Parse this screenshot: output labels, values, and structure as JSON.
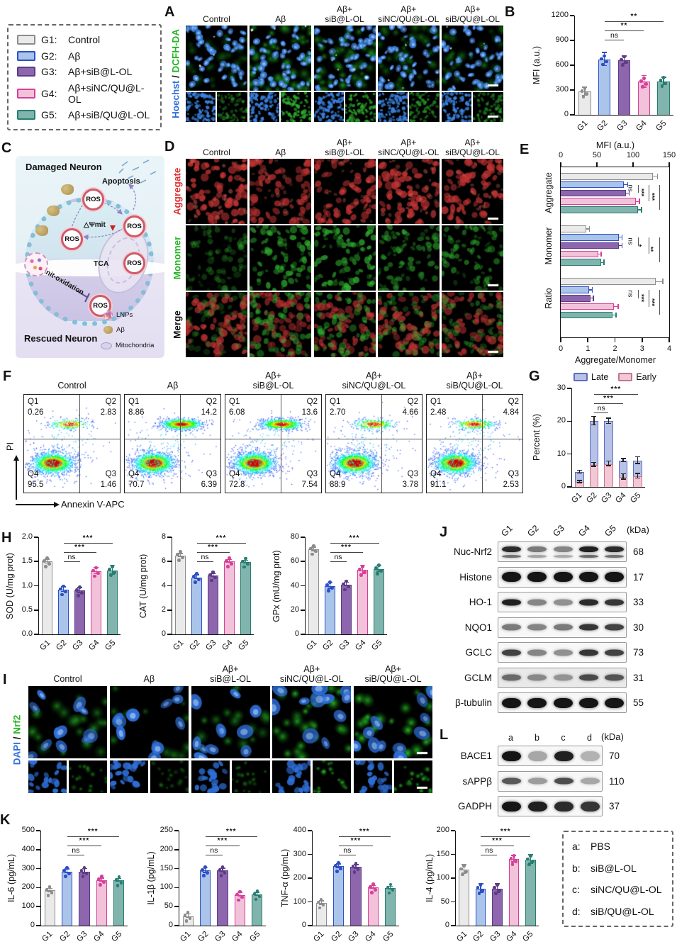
{
  "style": {
    "group_colors": [
      {
        "fill": "#eaeaea",
        "stroke": "#8c8c8c"
      },
      {
        "fill": "#abc4ea",
        "stroke": "#2d4fc4"
      },
      {
        "fill": "#8d66ad",
        "stroke": "#5b3c86"
      },
      {
        "fill": "#f2c2da",
        "stroke": "#d63f97"
      },
      {
        "fill": "#80b4ac",
        "stroke": "#277d72"
      }
    ],
    "late_color": {
      "fill": "#b8c2e6",
      "stroke": "#5a6dc2"
    },
    "early_color": {
      "fill": "#f3c8d4",
      "stroke": "#c4758e"
    },
    "hoechst_blue": "#2f6fd8",
    "dcfh_green": "#28b428",
    "aggregate_red": "#e03030",
    "monomer_green": "#28b428",
    "merge_dark": "#111111",
    "dapi_blue": "#2f6fd8",
    "nrf2_green": "#28b428"
  },
  "legend_groups": {
    "sep": ":",
    "items": [
      {
        "key": "G1",
        "label": "Control"
      },
      {
        "key": "G2",
        "label": "Aβ"
      },
      {
        "key": "G3",
        "label": "Aβ+siB@L-OL"
      },
      {
        "key": "G4",
        "label": "Aβ+siNC/QU@L-OL"
      },
      {
        "key": "G5",
        "label": "Aβ+siB/QU@L-OL"
      }
    ]
  },
  "legend_treatments": {
    "sep": ":",
    "items": [
      {
        "key": "a",
        "label": "PBS"
      },
      {
        "key": "b",
        "label": "siB@L-OL"
      },
      {
        "key": "c",
        "label": "siNC/QU@L-OL"
      },
      {
        "key": "d",
        "label": "siB/QU@L-OL"
      }
    ]
  },
  "treatment_columns": [
    [
      "Control"
    ],
    [
      "Aβ"
    ],
    [
      "Aβ+",
      "siB@L-OL"
    ],
    [
      "Aβ+",
      "siNC/QU@L-OL"
    ],
    [
      "Aβ+",
      "siB/QU@L-OL"
    ]
  ],
  "panels": {
    "A": {
      "letter": "A",
      "ylabel_parts": [
        "Hoechst",
        " / ",
        "DCFH-DA"
      ]
    },
    "B": {
      "letter": "B"
    },
    "C": {
      "letter": "C",
      "damaged": "Damaged Neuron",
      "rescued": "Rescued Neuron",
      "apoptosis": "Apoptosis",
      "ros": "ROS",
      "psi": "△Ψmit",
      "tca": "TCA",
      "antiox": "anit-oxidation",
      "legend": [
        {
          "icon": "lnp-icon",
          "label": "LNPs"
        },
        {
          "icon": "abeta-icon",
          "label": "Aβ"
        },
        {
          "icon": "mitochondria-icon",
          "label": "Mitochondria"
        }
      ]
    },
    "D": {
      "letter": "D",
      "rows": [
        {
          "label": "Aggregate",
          "color": "#e03030"
        },
        {
          "label": "Monomer",
          "color": "#28b428"
        },
        {
          "label": "Merge",
          "color": "#111111"
        }
      ]
    },
    "E": {
      "letter": "E"
    },
    "F": {
      "letter": "F",
      "ylabel": "PI",
      "xlabel": "Annexin V-APC",
      "quadrant_labels": [
        "Q1",
        "Q2",
        "Q3",
        "Q4"
      ],
      "plots": [
        {
          "q1": "0.26",
          "q2": "2.83",
          "q3": "1.46",
          "q4": "95.5"
        },
        {
          "q1": "8.86",
          "q2": "14.2",
          "q3": "6.39",
          "q4": "70.7"
        },
        {
          "q1": "6.08",
          "q2": "13.6",
          "q3": "7.54",
          "q4": "72.8"
        },
        {
          "q1": "2.70",
          "q2": "4.66",
          "q3": "3.78",
          "q4": "88.9"
        },
        {
          "q1": "2.48",
          "q2": "4.84",
          "q3": "2.53",
          "q4": "91.1"
        }
      ]
    },
    "G": {
      "letter": "G"
    },
    "H": {
      "letter": "H"
    },
    "I": {
      "letter": "I",
      "ylabel_parts": [
        "DAPI",
        " / ",
        "Nrf2"
      ]
    },
    "J": {
      "letter": "J",
      "lanes": [
        "G1",
        "G2",
        "G3",
        "G4",
        "G5"
      ],
      "kda_header": "(kDa)",
      "rows": [
        {
          "label": "Nuc-Nrf2",
          "kda": "68",
          "bands": [
            0.9,
            0.55,
            0.5,
            0.95,
            0.9
          ],
          "double": true
        },
        {
          "label": "Histone",
          "kda": "17",
          "bands": [
            1,
            1,
            1,
            1,
            1
          ],
          "thick": true
        },
        {
          "label": "HO-1",
          "kda": "33",
          "bands": [
            0.95,
            0.5,
            0.45,
            0.9,
            0.85
          ]
        },
        {
          "label": "NQO1",
          "kda": "30",
          "bands": [
            0.55,
            0.5,
            0.55,
            0.85,
            0.8
          ]
        },
        {
          "label": "GCLC",
          "kda": "73",
          "bands": [
            0.8,
            0.5,
            0.45,
            0.85,
            0.8
          ]
        },
        {
          "label": "GCLM",
          "kda": "31",
          "bands": [
            0.6,
            0.45,
            0.4,
            0.75,
            0.7
          ],
          "fuzzy": true
        },
        {
          "label": "β-tubulin",
          "kda": "55",
          "bands": [
            1,
            1,
            1,
            1,
            1
          ],
          "thick": true
        }
      ]
    },
    "K": {
      "letter": "K"
    },
    "L": {
      "letter": "L",
      "lanes": [
        "a",
        "b",
        "c",
        "d"
      ],
      "kda_header": "(kDa)",
      "rows": [
        {
          "label": "BACE1",
          "kda": "70",
          "bands": [
            1,
            0.35,
            0.95,
            0.3
          ],
          "thick": true
        },
        {
          "label": "sAPPβ",
          "kda": "110",
          "bands": [
            0.7,
            0.4,
            0.75,
            0.35
          ]
        },
        {
          "label": "GADPH",
          "kda": "37",
          "bands": [
            1,
            0.95,
            0.9,
            0.85
          ],
          "thick": true
        }
      ]
    }
  },
  "chart_data": [
    {
      "id": "B",
      "type": "bar",
      "title": "",
      "xlabel": "",
      "ylabel": "MFI (a.u.)",
      "ylim": [
        0,
        1200
      ],
      "yticks": [
        "0",
        "300",
        "600",
        "900",
        "1200"
      ],
      "categories": [
        "G1",
        "G2",
        "G3",
        "G4",
        "G5"
      ],
      "values": [
        280,
        670,
        660,
        400,
        405
      ],
      "errors": [
        50,
        80,
        45,
        70,
        45
      ],
      "sig": [
        {
          "from": 1,
          "to": 2,
          "label": "ns"
        },
        {
          "from": 1,
          "to": 3,
          "label": "**"
        },
        {
          "from": 1,
          "to": 4,
          "label": "**"
        }
      ]
    },
    {
      "id": "E",
      "type": "hbar-groups",
      "categories": [
        "G1",
        "G2",
        "G3",
        "G4",
        "G5"
      ],
      "top_axis": {
        "label": "MFI (a.u.)",
        "lim": [
          0,
          150
        ],
        "ticks": [
          "0",
          "50",
          "100",
          "150"
        ]
      },
      "bottom_axis": {
        "label": "Aggregate/Monomer",
        "lim": [
          0,
          4
        ],
        "ticks": [
          "0",
          "1",
          "2",
          "3",
          "4"
        ]
      },
      "groups": [
        {
          "label": "Aggregate",
          "axis": "top",
          "values": [
            127,
            87,
            90,
            104,
            107
          ],
          "errors": [
            6,
            5,
            4,
            4,
            4
          ],
          "sig": [
            "ns",
            "***",
            "***"
          ]
        },
        {
          "label": "Monomer",
          "axis": "top",
          "values": [
            35,
            80,
            80,
            52,
            56
          ],
          "errors": [
            4,
            4,
            4,
            3,
            3
          ],
          "sig": [
            "ns",
            "*",
            "**"
          ]
        },
        {
          "label": "Ratio",
          "axis": "bottom",
          "values": [
            3.5,
            1.05,
            1.1,
            1.95,
            1.9
          ],
          "errors": [
            0.25,
            0.1,
            0.08,
            0.15,
            0.12
          ],
          "sig": [
            "ns",
            "***",
            "***"
          ]
        }
      ]
    },
    {
      "id": "G",
      "type": "stacked",
      "title": "",
      "ylabel": "Percent (%)",
      "ylim": [
        0,
        30
      ],
      "yticks": [
        "0",
        "10",
        "20",
        "30"
      ],
      "categories": [
        "G1",
        "G2",
        "G3",
        "G4",
        "G5"
      ],
      "legend": [
        "Late",
        "Early"
      ],
      "series": [
        {
          "name": "Early",
          "values": [
            1.5,
            6.7,
            7,
            3,
            3.2
          ]
        },
        {
          "name": "Late",
          "values": [
            3,
            13.3,
            13,
            5,
            4.8
          ]
        }
      ],
      "errors_total": [
        0.4,
        1.3,
        0.8,
        0.5,
        1
      ],
      "errors_early": [
        0.3,
        0.6,
        0.7,
        0.8,
        0.7
      ],
      "sig": [
        {
          "from": 1,
          "to": 2,
          "label": "ns"
        },
        {
          "from": 1,
          "to": 3,
          "label": "***"
        },
        {
          "from": 1,
          "to": 4,
          "label": "***"
        }
      ]
    },
    {
      "id": "SOD",
      "type": "bar",
      "ylabel": "SOD (U/mg prot)",
      "ylim": [
        0,
        2
      ],
      "yticks": [
        "0.0",
        "0.5",
        "1.0",
        "1.5",
        "2.0"
      ],
      "categories": [
        "G1",
        "G2",
        "G3",
        "G4",
        "G5"
      ],
      "values": [
        1.5,
        0.92,
        0.9,
        1.3,
        1.32
      ],
      "errors": [
        0.04,
        0.05,
        0.05,
        0.06,
        0.09
      ],
      "sig": [
        {
          "from": 1,
          "to": 2,
          "label": "ns"
        },
        {
          "from": 1,
          "to": 3,
          "label": "***"
        },
        {
          "from": 1,
          "to": 4,
          "label": "***"
        }
      ]
    },
    {
      "id": "CAT",
      "type": "bar",
      "ylabel": "CAT (U/mg prot)",
      "ylim": [
        0,
        8
      ],
      "yticks": [
        "0",
        "2",
        "4",
        "6",
        "8"
      ],
      "categories": [
        "G1",
        "G2",
        "G3",
        "G4",
        "G5"
      ],
      "values": [
        6.5,
        4.7,
        4.85,
        6,
        5.95
      ],
      "errors": [
        0.12,
        0.15,
        0.12,
        0.12,
        0.1
      ],
      "sig": [
        {
          "from": 1,
          "to": 2,
          "label": "ns"
        },
        {
          "from": 1,
          "to": 3,
          "label": "***"
        },
        {
          "from": 1,
          "to": 4,
          "label": "***"
        }
      ]
    },
    {
      "id": "GPX",
      "type": "bar",
      "ylabel": "GPx (mU/mg prot)",
      "ylim": [
        0,
        80
      ],
      "yticks": [
        "0",
        "20",
        "40",
        "60",
        "80"
      ],
      "categories": [
        "G1",
        "G2",
        "G3",
        "G4",
        "G5"
      ],
      "values": [
        70,
        40,
        41,
        53,
        54
      ],
      "errors": [
        1.5,
        2.5,
        1.5,
        3.5,
        2.5
      ],
      "sig": [
        {
          "from": 1,
          "to": 2,
          "label": "ns"
        },
        {
          "from": 1,
          "to": 3,
          "label": "***"
        },
        {
          "from": 1,
          "to": 4,
          "label": "***"
        }
      ]
    },
    {
      "id": "IL6",
      "type": "bar",
      "ylabel": "IL-6 (pg/mL)",
      "ylim": [
        0,
        500
      ],
      "yticks": [
        "0",
        "100",
        "200",
        "300",
        "400",
        "500"
      ],
      "categories": [
        "G1",
        "G2",
        "G3",
        "G4",
        "G5"
      ],
      "values": [
        185,
        285,
        285,
        240,
        238
      ],
      "errors": [
        8,
        10,
        12,
        8,
        8
      ],
      "sig": [
        {
          "from": 1,
          "to": 2,
          "label": "ns"
        },
        {
          "from": 1,
          "to": 3,
          "label": "***"
        },
        {
          "from": 1,
          "to": 4,
          "label": "***"
        }
      ]
    },
    {
      "id": "IL1B",
      "type": "bar",
      "ylabel": "IL-1β (pg/mL)",
      "ylim": [
        0,
        250
      ],
      "yticks": [
        "0",
        "50",
        "100",
        "150",
        "200",
        "250"
      ],
      "categories": [
        "G1",
        "G2",
        "G3",
        "G4",
        "G5"
      ],
      "values": [
        25,
        145,
        145,
        80,
        82
      ],
      "errors": [
        4,
        6,
        5,
        6,
        4
      ],
      "sig": [
        {
          "from": 1,
          "to": 2,
          "label": "ns"
        },
        {
          "from": 1,
          "to": 3,
          "label": "***"
        },
        {
          "from": 1,
          "to": 4,
          "label": "***"
        }
      ]
    },
    {
      "id": "TNF",
      "type": "bar",
      "ylabel": "TNF-α (pg/mL)",
      "ylim": [
        0,
        400
      ],
      "yticks": [
        "0",
        "100",
        "200",
        "300",
        "400"
      ],
      "categories": [
        "G1",
        "G2",
        "G3",
        "G4",
        "G5"
      ],
      "values": [
        95,
        250,
        247,
        160,
        158
      ],
      "errors": [
        8,
        8,
        8,
        6,
        6
      ],
      "sig": [
        {
          "from": 1,
          "to": 2,
          "label": "ns"
        },
        {
          "from": 1,
          "to": 3,
          "label": "***"
        },
        {
          "from": 1,
          "to": 4,
          "label": "***"
        }
      ]
    },
    {
      "id": "IL4",
      "type": "bar",
      "ylabel": "IL-4 (pg/mL)",
      "ylim": [
        0,
        200
      ],
      "yticks": [
        "0",
        "50",
        "100",
        "150",
        "200"
      ],
      "categories": [
        "G1",
        "G2",
        "G3",
        "G4",
        "G5"
      ],
      "values": [
        118,
        78,
        78,
        140,
        139
      ],
      "errors": [
        9,
        9,
        9,
        7,
        9
      ],
      "sig": [
        {
          "from": 1,
          "to": 2,
          "label": "ns"
        },
        {
          "from": 1,
          "to": 3,
          "label": "***"
        },
        {
          "from": 1,
          "to": 4,
          "label": "***"
        }
      ]
    }
  ]
}
